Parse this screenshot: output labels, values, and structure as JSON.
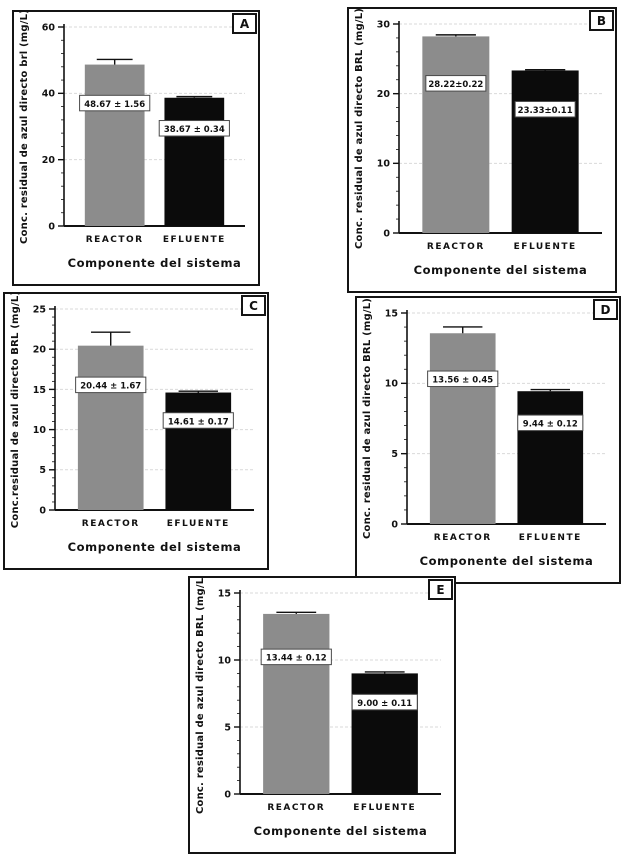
{
  "colors": {
    "reactor_bar": "#8c8c8c",
    "efluente_bar": "#0b0b0b",
    "grid": "#d9d9d9",
    "axis": "#111111",
    "frame": "#141414",
    "value_box_border": "#4a4a4a",
    "value_box_fill": "#ffffff"
  },
  "chart_data": [
    {
      "panel": "A",
      "type": "bar",
      "xlabel": "Componente del sistema",
      "ylabel": "Conc. residual de azul directo brl (mg/L)",
      "categories": [
        "REACTOR",
        "EFLUENTE"
      ],
      "values": [
        48.67,
        38.67
      ],
      "errors": [
        1.56,
        0.34
      ],
      "value_labels": [
        "48.67 ± 1.56",
        "38.67 ± 0.34"
      ],
      "ylim": [
        0,
        60
      ],
      "yticks": [
        0,
        20,
        40,
        60
      ],
      "grid": true,
      "legend": "none"
    },
    {
      "panel": "B",
      "type": "bar",
      "xlabel": "Componente del sistema",
      "ylabel": "Conc. residual de azul directo BRL (mg/L)",
      "categories": [
        "REACTOR",
        "EFLUENTE"
      ],
      "values": [
        28.22,
        23.33
      ],
      "errors": [
        0.22,
        0.11
      ],
      "value_labels": [
        "28.22±0.22",
        "23.33±0.11"
      ],
      "ylim": [
        0,
        30
      ],
      "yticks": [
        0,
        10,
        20,
        30
      ],
      "grid": true,
      "legend": "none"
    },
    {
      "panel": "C",
      "type": "bar",
      "xlabel": "Componente del sistema",
      "ylabel": "Conc.residual de azul directo BRL (mg/L)",
      "categories": [
        "REACTOR",
        "EFLUENTE"
      ],
      "values": [
        20.44,
        14.61
      ],
      "errors": [
        1.67,
        0.17
      ],
      "value_labels": [
        "20.44 ± 1.67",
        "14.61 ± 0.17"
      ],
      "ylim": [
        0,
        25
      ],
      "yticks": [
        0,
        5,
        10,
        15,
        20,
        25
      ],
      "grid": true,
      "legend": "none"
    },
    {
      "panel": "D",
      "type": "bar",
      "xlabel": "Componente del sistema",
      "ylabel": "Conc. residual de azul directo BRL (mg/L)",
      "categories": [
        "REACTOR",
        "EFLUENTE"
      ],
      "values": [
        13.56,
        9.44
      ],
      "errors": [
        0.45,
        0.12
      ],
      "value_labels": [
        "13.56 ± 0.45",
        "9.44 ± 0.12"
      ],
      "ylim": [
        0,
        15
      ],
      "yticks": [
        0,
        5,
        10,
        15
      ],
      "grid": true,
      "legend": "none"
    },
    {
      "panel": "E",
      "type": "bar",
      "xlabel": "Componente del sistema",
      "ylabel": "Conc. residual de azul directo BRL (mg/L)",
      "categories": [
        "REACTOR",
        "EFLUENTE"
      ],
      "values": [
        13.44,
        9.0
      ],
      "errors": [
        0.12,
        0.11
      ],
      "value_labels": [
        "13.44 ± 0.12",
        "9.00 ± 0.11"
      ],
      "ylim": [
        0,
        15
      ],
      "yticks": [
        0,
        5,
        10,
        15
      ],
      "grid": true,
      "legend": "none"
    }
  ]
}
